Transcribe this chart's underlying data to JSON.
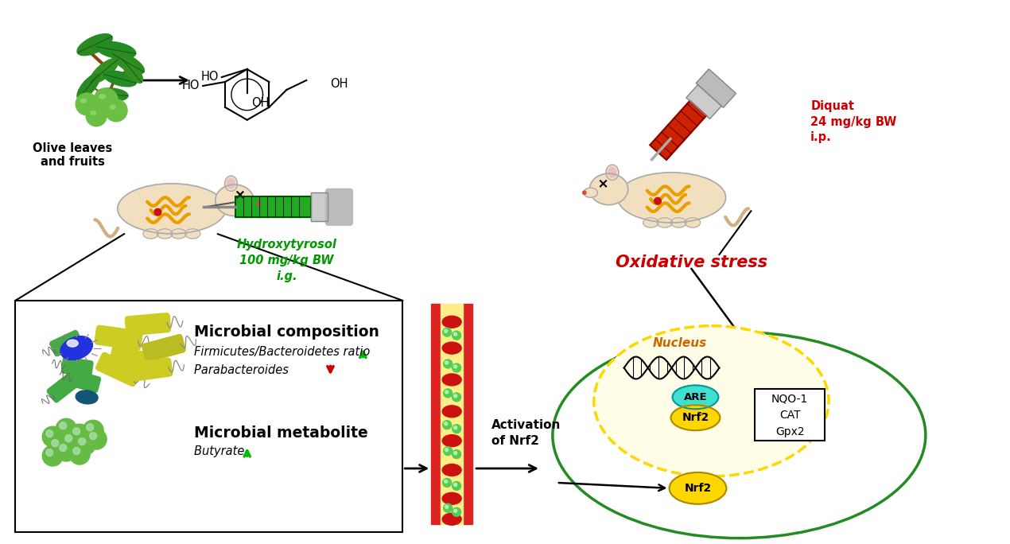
{
  "bg_color": "#ffffff",
  "fig_width": 12.7,
  "fig_height": 6.84,
  "elements": {
    "olive_label": "Olive leaves\nand fruits",
    "hydroxytyrosol_label": "Hydroxytyrosol\n100 mg/kg BW\ni.g.",
    "diquat_label": "Diquat\n24 mg/kg BW\ni.p.",
    "oxidative_stress_label": "Oxidative stress",
    "microbial_comp_label": "Microbial composition",
    "firmicutes_label": "Firmicutes/Bacteroidetes ratio",
    "parabacteroides_label": "Parabacteroides",
    "metabolite_label": "Microbial metabolite",
    "butyrate_label": "Butyrate",
    "activation_label": "Activation\nof Nrf2",
    "nucleus_label": "Nucleus",
    "are_label": "ARE",
    "nrf2_nucleus_label": "Nrf2",
    "nrf2_cytoplasm_label": "Nrf2",
    "genes_label": "NQO-1\nCAT\nGpx2"
  },
  "colors": {
    "green_up": "#00bb00",
    "red_down": "#cc0000",
    "hydroxytyrosol_green": "#009900",
    "diquat_red": "#cc0000",
    "oxidative_red": "#cc0000",
    "cell_green": "#228B22",
    "nucleus_yellow": "#FFD700",
    "are_cyan": "#40E0D0",
    "nrf2_yellow": "#FFD700",
    "mouse_body": "#F2DFC0",
    "mouse_outline": "#AAAAAA",
    "intestine_orange": "#E8A000",
    "olive_green_dark": "#2E7B2E",
    "olive_green_light": "#4CAF50",
    "olive_fruit": "#6BBF45",
    "branch_brown": "#8B4513",
    "syringe_green": "#22AA22",
    "syringe_red": "#CC2200",
    "syringe_gray": "#AAAAAA",
    "blood_red": "#CC1111",
    "vessel_red": "#DD2222",
    "vessel_yellow": "#FFEE88",
    "microbe_green": "#66BB44",
    "microbe_green_dot": "#55CC55",
    "bacteria_yellow": "#CCCC22",
    "bacteria_green": "#44AA44",
    "bacteria_blue": "#1A3AEE",
    "bacteria_teal": "#116688"
  }
}
